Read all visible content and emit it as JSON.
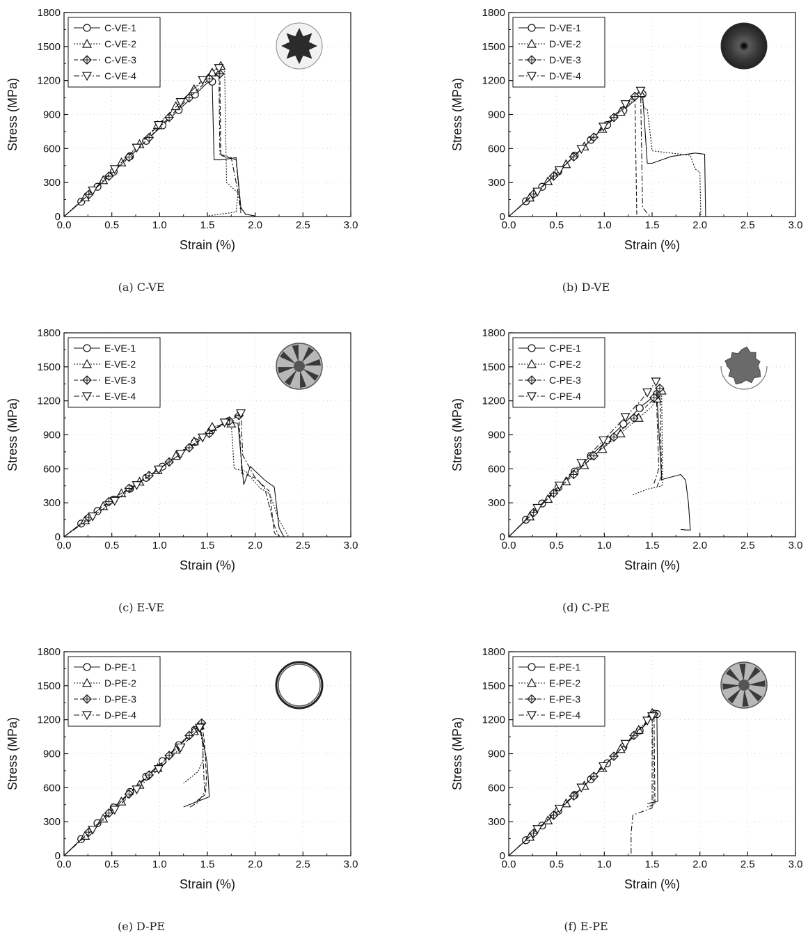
{
  "figure": {
    "background": "#ffffff",
    "ink": "#111111"
  },
  "chart_data": [
    {
      "type": "line",
      "caption": "(a) C-VE",
      "xlabel": "Strain (%)",
      "ylabel": "Stress (MPa)",
      "xlim": [
        0,
        3.0
      ],
      "ylim": [
        0,
        1800
      ],
      "xticks": [
        "0.0",
        "0.5",
        "1.0",
        "1.5",
        "2.0",
        "2.5",
        "3.0"
      ],
      "yticks": [
        "0",
        "300",
        "600",
        "900",
        "1200",
        "1500",
        "1800"
      ],
      "legend": "top-left",
      "inset": "fracture-section",
      "inset_style": "rough-dark",
      "series": [
        {
          "name": "C-VE-1",
          "marker": "circle",
          "dash": "",
          "x": [
            0,
            0.2,
            0.5,
            1.0,
            1.5,
            1.55,
            1.57,
            1.65,
            1.8,
            1.85,
            1.9,
            2.0
          ],
          "y": [
            0,
            145,
            380,
            780,
            1180,
            1190,
            500,
            500,
            520,
            80,
            20,
            5
          ]
        },
        {
          "name": "C-VE-2",
          "marker": "triangle-up",
          "dash": "2,2",
          "x": [
            0,
            0.3,
            0.7,
            1.2,
            1.6,
            1.64,
            1.68,
            1.7,
            1.82,
            1.8,
            1.5
          ],
          "y": [
            0,
            230,
            560,
            1000,
            1310,
            1330,
            1320,
            300,
            210,
            40,
            5
          ]
        },
        {
          "name": "C-VE-3",
          "marker": "diamond-cross",
          "dash": "6,3",
          "x": [
            0,
            0.4,
            0.8,
            1.2,
            1.55,
            1.63,
            1.64,
            1.8,
            1.85
          ],
          "y": [
            0,
            300,
            620,
            960,
            1240,
            1260,
            540,
            500,
            50
          ]
        },
        {
          "name": "C-VE-4",
          "marker": "triangle-down",
          "dash": "8,3,2,3",
          "x": [
            0,
            0.3,
            0.8,
            1.3,
            1.55,
            1.62,
            1.63,
            1.75,
            1.82,
            1.85
          ],
          "y": [
            0,
            230,
            640,
            1080,
            1290,
            1310,
            550,
            520,
            220,
            30
          ]
        }
      ]
    },
    {
      "type": "line",
      "caption": "(b) D-VE",
      "xlabel": "Strain (%)",
      "ylabel": "Stress (MPa)",
      "xlim": [
        0,
        3.0
      ],
      "ylim": [
        0,
        1800
      ],
      "xticks": [
        "0.0",
        "0.5",
        "1.0",
        "1.5",
        "2.0",
        "2.5",
        "3.0"
      ],
      "yticks": [
        "0",
        "300",
        "600",
        "900",
        "1200",
        "1500",
        "1800"
      ],
      "legend": "top-left",
      "inset": "fracture-section",
      "inset_style": "solid-dark",
      "series": [
        {
          "name": "D-VE-1",
          "marker": "circle",
          "dash": "",
          "x": [
            0,
            0.4,
            0.9,
            1.35,
            1.4,
            1.45,
            1.5,
            1.7,
            1.95,
            2.05,
            2.06
          ],
          "y": [
            0,
            300,
            710,
            1050,
            1080,
            470,
            470,
            530,
            560,
            550,
            0
          ]
        },
        {
          "name": "D-VE-2",
          "marker": "triangle-up",
          "dash": "2,2",
          "x": [
            0,
            0.5,
            1.0,
            1.38,
            1.42,
            1.45,
            1.5,
            1.9,
            1.95,
            2.0,
            2.01
          ],
          "y": [
            0,
            380,
            790,
            1090,
            950,
            950,
            580,
            540,
            420,
            390,
            0
          ]
        },
        {
          "name": "D-VE-3",
          "marker": "diamond-cross",
          "dash": "6,3",
          "x": [
            0,
            0.5,
            1.0,
            1.32,
            1.34
          ],
          "y": [
            0,
            380,
            790,
            1060,
            0
          ]
        },
        {
          "name": "D-VE-4",
          "marker": "triangle-down",
          "dash": "8,3,2,3",
          "x": [
            0,
            0.3,
            0.8,
            1.3,
            1.38,
            1.4,
            1.45,
            1.48
          ],
          "y": [
            0,
            220,
            630,
            1060,
            1110,
            80,
            30,
            0
          ]
        }
      ]
    },
    {
      "type": "line",
      "caption": "(c) E-VE",
      "xlabel": "Strain (%)",
      "ylabel": "Stress (MPa)",
      "xlim": [
        0,
        3.0
      ],
      "ylim": [
        0,
        1800
      ],
      "xticks": [
        "0.0",
        "0.5",
        "1.0",
        "1.5",
        "2.0",
        "2.5",
        "3.0"
      ],
      "yticks": [
        "0",
        "300",
        "600",
        "900",
        "1200",
        "1500",
        "1800"
      ],
      "legend": "top-left",
      "inset": "fracture-section",
      "inset_style": "splintered",
      "series": [
        {
          "name": "E-VE-1",
          "marker": "circle",
          "dash": "",
          "x": [
            0,
            0.4,
            1.0,
            1.5,
            1.72,
            1.82,
            1.88,
            1.95,
            2.1,
            2.2,
            2.25,
            2.3
          ],
          "y": [
            0,
            260,
            600,
            920,
            1020,
            1000,
            460,
            620,
            500,
            440,
            80,
            0
          ]
        },
        {
          "name": "E-VE-2",
          "marker": "triangle-up",
          "dash": "2,2",
          "x": [
            0,
            0.5,
            1.0,
            1.55,
            1.75,
            1.78,
            1.9,
            2.05,
            2.15,
            2.25,
            2.35
          ],
          "y": [
            0,
            330,
            600,
            970,
            1000,
            600,
            580,
            430,
            380,
            150,
            0
          ]
        },
        {
          "name": "E-VE-3",
          "marker": "diamond-cross",
          "dash": "6,3",
          "x": [
            0,
            0.5,
            1.0,
            1.6,
            1.83,
            1.86,
            2.0,
            2.15,
            2.2,
            2.23
          ],
          "y": [
            0,
            330,
            600,
            960,
            1070,
            560,
            520,
            400,
            40,
            0
          ]
        },
        {
          "name": "E-VE-4",
          "marker": "triangle-down",
          "dash": "8,3,2,3",
          "x": [
            0,
            0.6,
            1.2,
            1.6,
            1.85,
            1.87,
            2.0,
            2.1,
            2.2,
            2.25
          ],
          "y": [
            0,
            360,
            720,
            970,
            1090,
            720,
            520,
            430,
            100,
            0
          ]
        }
      ]
    },
    {
      "type": "line",
      "caption": "(d) C-PE",
      "xlabel": "Strain (%)",
      "ylabel": "Stress (MPa)",
      "xlim": [
        0,
        3.0
      ],
      "ylim": [
        0,
        1800
      ],
      "xticks": [
        "0.0",
        "0.5",
        "1.0",
        "1.5",
        "2.0",
        "2.5",
        "3.0"
      ],
      "yticks": [
        "0",
        "300",
        "600",
        "900",
        "1200",
        "1500",
        "1800"
      ],
      "legend": "top-left",
      "inset": "fracture-section",
      "inset_style": "rough-halo",
      "series": [
        {
          "name": "C-PE-1",
          "marker": "circle",
          "dash": "",
          "x": [
            0,
            0.5,
            1.0,
            1.4,
            1.55,
            1.6,
            1.62,
            1.8,
            1.85,
            1.88,
            1.9,
            1.86,
            1.8
          ],
          "y": [
            0,
            420,
            830,
            1160,
            1260,
            500,
            510,
            550,
            500,
            300,
            60,
            60,
            65
          ]
        },
        {
          "name": "C-PE-2",
          "marker": "triangle-up",
          "dash": "2,2",
          "x": [
            0,
            0.6,
            1.0,
            1.5,
            1.6,
            1.61,
            1.6,
            1.45,
            1.3
          ],
          "y": [
            0,
            490,
            790,
            1150,
            1290,
            470,
            450,
            420,
            370
          ]
        },
        {
          "name": "C-PE-3",
          "marker": "diamond-cross",
          "dash": "6,3",
          "x": [
            0,
            0.5,
            1.0,
            1.5,
            1.58,
            1.6,
            1.55
          ],
          "y": [
            0,
            410,
            800,
            1200,
            1310,
            540,
            440
          ]
        },
        {
          "name": "C-PE-4",
          "marker": "triangle-down",
          "dash": "8,3,2,3",
          "x": [
            0,
            0.4,
            1.0,
            1.38,
            1.54,
            1.57,
            1.52
          ],
          "y": [
            0,
            340,
            860,
            1200,
            1370,
            600,
            470
          ]
        }
      ]
    },
    {
      "type": "line",
      "caption": "(e) D-PE",
      "xlabel": "Strain (%)",
      "ylabel": "Stress (MPa)",
      "xlim": [
        0,
        3.0
      ],
      "ylim": [
        0,
        1800
      ],
      "xticks": [
        "0.0",
        "0.5",
        "1.0",
        "1.5",
        "2.0",
        "2.5",
        "3.0"
      ],
      "yticks": [
        "0",
        "300",
        "600",
        "900",
        "1200",
        "1500",
        "1800"
      ],
      "legend": "top-left",
      "inset": "fracture-section",
      "inset_style": "thin-ring",
      "series": [
        {
          "name": "D-PE-1",
          "marker": "circle",
          "dash": "",
          "x": [
            0,
            0.5,
            1.0,
            1.35,
            1.42,
            1.48,
            1.5,
            1.52,
            1.4,
            1.25
          ],
          "y": [
            0,
            410,
            810,
            1100,
            1140,
            900,
            800,
            520,
            480,
            430
          ]
        },
        {
          "name": "D-PE-2",
          "marker": "triangle-up",
          "dash": "2,2",
          "x": [
            0,
            0.5,
            1.0,
            1.42,
            1.46,
            1.45,
            1.4,
            1.25
          ],
          "y": [
            0,
            400,
            790,
            1150,
            1000,
            830,
            740,
            640
          ]
        },
        {
          "name": "D-PE-3",
          "marker": "diamond-cross",
          "dash": "6,3",
          "x": [
            0,
            0.5,
            1.0,
            1.44,
            1.47,
            1.49,
            1.48,
            1.35
          ],
          "y": [
            0,
            400,
            800,
            1170,
            1000,
            700,
            540,
            460
          ]
        },
        {
          "name": "D-PE-4",
          "marker": "triangle-down",
          "dash": "8,3,2,3",
          "x": [
            0,
            0.6,
            1.1,
            1.42,
            1.45,
            1.47,
            1.4,
            1.3
          ],
          "y": [
            0,
            460,
            850,
            1130,
            980,
            560,
            470,
            420
          ]
        }
      ]
    },
    {
      "type": "line",
      "caption": "(f) E-PE",
      "xlabel": "Strain (%)",
      "ylabel": "Stress (MPa)",
      "xlim": [
        0,
        3.0
      ],
      "ylim": [
        0,
        1800
      ],
      "xticks": [
        "0.0",
        "0.5",
        "1.0",
        "1.5",
        "2.0",
        "2.5",
        "3.0"
      ],
      "yticks": [
        "0",
        "300",
        "600",
        "900",
        "1200",
        "1500",
        "1800"
      ],
      "legend": "top-left",
      "inset": "fracture-section",
      "inset_style": "splintered",
      "series": [
        {
          "name": "E-PE-1",
          "marker": "circle",
          "dash": "",
          "x": [
            0,
            0.5,
            1.0,
            1.4,
            1.52,
            1.55,
            1.56,
            1.5,
            1.45
          ],
          "y": [
            0,
            380,
            790,
            1130,
            1240,
            1250,
            480,
            470,
            460
          ]
        },
        {
          "name": "E-PE-2",
          "marker": "triangle-up",
          "dash": "2,2",
          "x": [
            0,
            0.5,
            1.0,
            1.45,
            1.5,
            1.52,
            1.45
          ],
          "y": [
            0,
            380,
            790,
            1190,
            1260,
            450,
            430
          ]
        },
        {
          "name": "E-PE-3",
          "marker": "diamond-cross",
          "dash": "6,3",
          "x": [
            0,
            0.5,
            1.0,
            1.48,
            1.52,
            1.53,
            1.48
          ],
          "y": [
            0,
            380,
            790,
            1210,
            1250,
            460,
            440
          ]
        },
        {
          "name": "E-PE-4",
          "marker": "triangle-down",
          "dash": "8,3,2,3",
          "x": [
            0,
            0.6,
            1.1,
            1.47,
            1.5,
            1.5,
            1.3,
            1.28,
            1.28
          ],
          "y": [
            0,
            470,
            880,
            1210,
            1230,
            420,
            360,
            200,
            0
          ]
        }
      ]
    }
  ]
}
